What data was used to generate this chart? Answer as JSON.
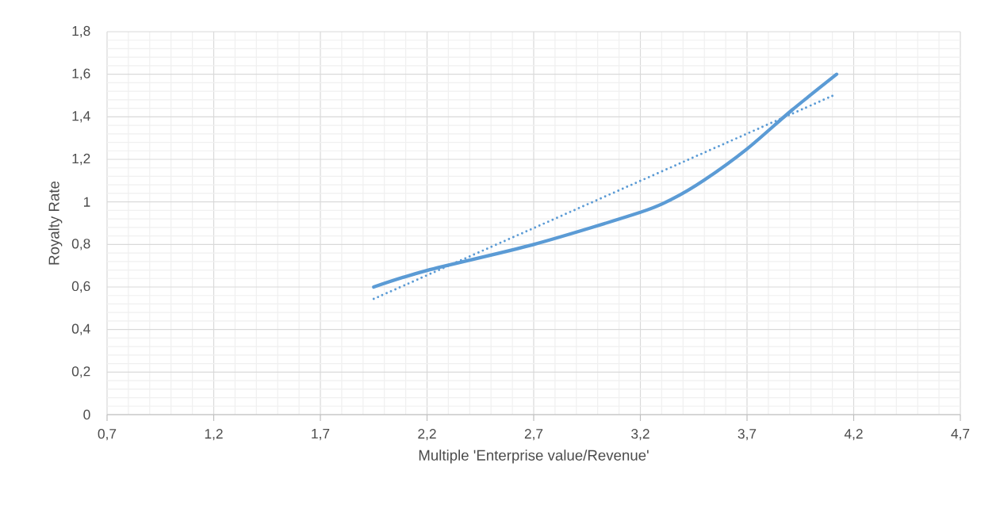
{
  "chart_data": {
    "type": "line",
    "xlabel": "Multiple 'Enterprise value/Revenue'",
    "ylabel": "Royalty Rate",
    "xlim": [
      0.7,
      4.7
    ],
    "ylim": [
      0,
      1.8
    ],
    "xticks": [
      {
        "value": 0.7,
        "label": "0,7"
      },
      {
        "value": 1.2,
        "label": "1,2"
      },
      {
        "value": 1.7,
        "label": "1,7"
      },
      {
        "value": 2.2,
        "label": "2,2"
      },
      {
        "value": 2.7,
        "label": "2,7"
      },
      {
        "value": 3.2,
        "label": "3,2"
      },
      {
        "value": 3.7,
        "label": "3,7"
      },
      {
        "value": 4.2,
        "label": "4,2"
      },
      {
        "value": 4.7,
        "label": "4,7"
      }
    ],
    "yticks": [
      0,
      {
        "value": 0.2,
        "label": "0,2"
      },
      {
        "value": 0.4,
        "label": "0,4"
      },
      {
        "value": 0.6,
        "label": "0,6"
      },
      {
        "value": 0.8,
        "label": "0,8"
      },
      1,
      {
        "value": 1.2,
        "label": "1,2"
      },
      {
        "value": 1.4,
        "label": "1,4"
      },
      {
        "value": 1.6,
        "label": "1,6"
      },
      {
        "value": 1.8,
        "label": "1,8"
      }
    ],
    "grid": true,
    "series": [
      {
        "color": "#5b9bd5",
        "line_style": "solid",
        "x": [
          1.95,
          2.2,
          2.7,
          3.2,
          3.35,
          3.5,
          3.7,
          3.91,
          4.12
        ],
        "values": [
          0.6,
          0.678,
          0.8,
          0.951,
          1.014,
          1.103,
          1.249,
          1.431,
          1.6
        ]
      },
      {
        "color": "#5b9bd5",
        "line_style": "dotted",
        "x": [
          1.95,
          4.12
        ],
        "values": [
          0.544,
          1.507
        ]
      }
    ]
  }
}
